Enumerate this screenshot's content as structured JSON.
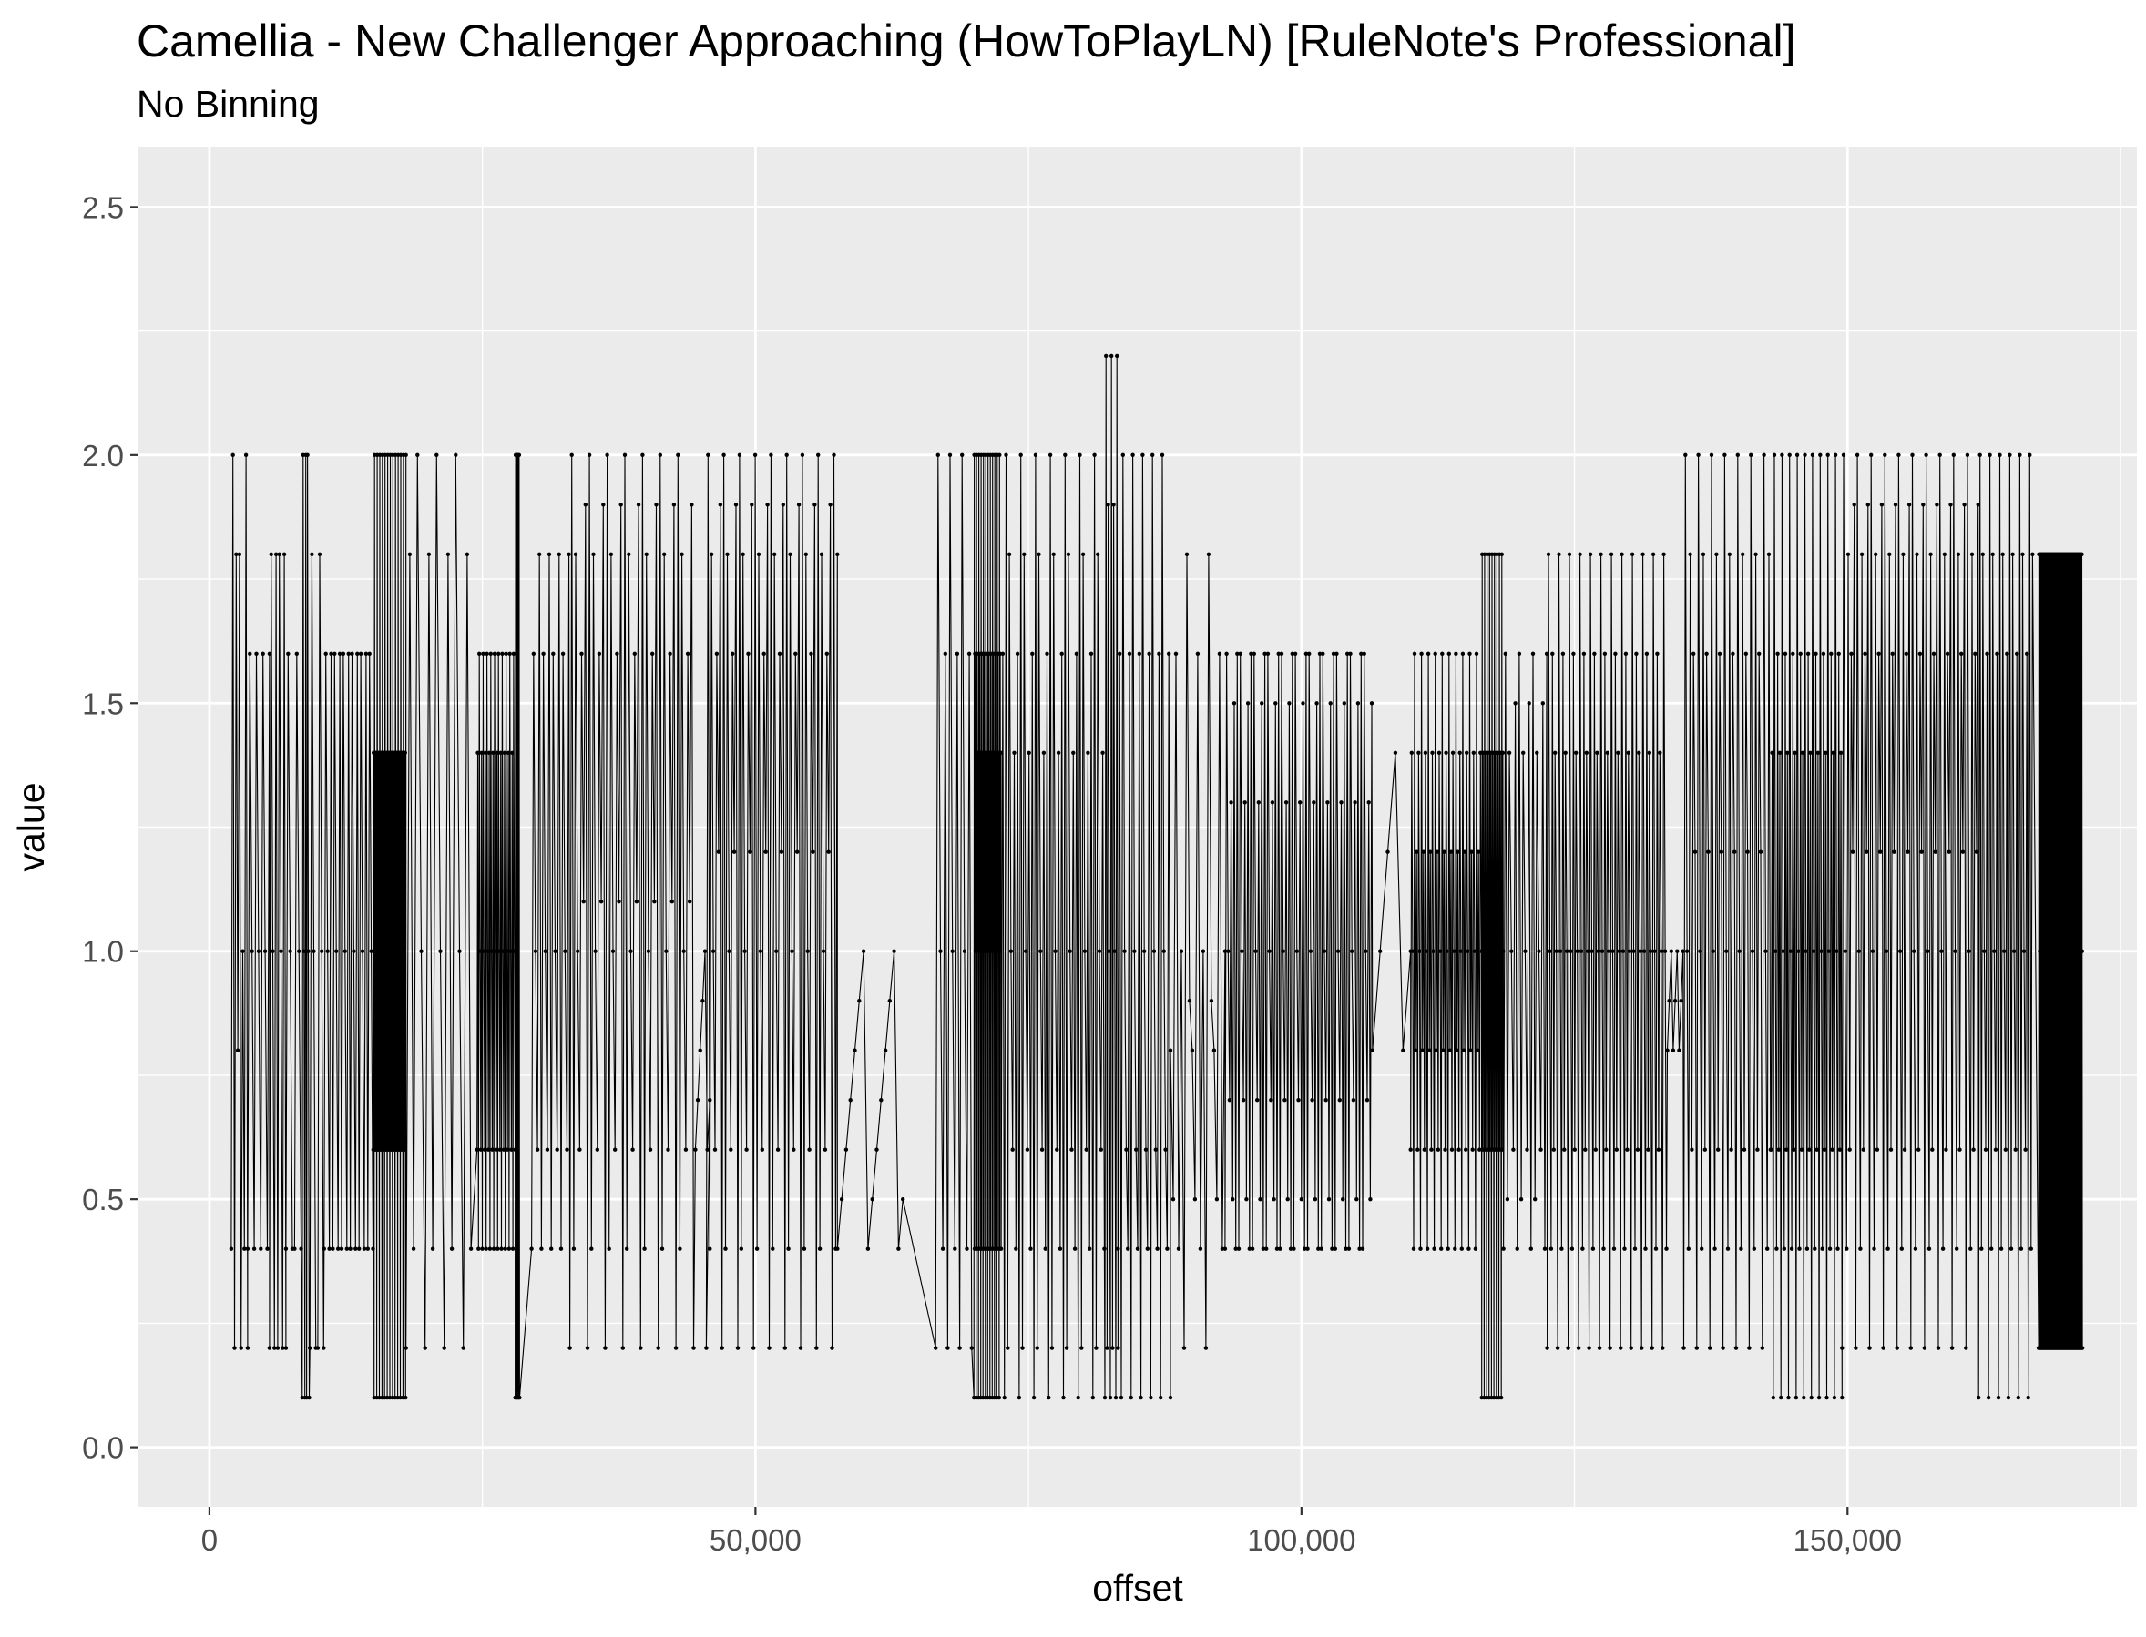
{
  "chart_data": {
    "type": "line",
    "title": "Camellia - New Challenger Approaching (HowToPlayLN) [RuleNote's Professional]",
    "subtitle": "No Binning",
    "xlabel": "offset",
    "ylabel": "value",
    "xlim": [
      -6500,
      176500
    ],
    "ylim": [
      -0.12,
      2.62
    ],
    "x_ticks": [
      {
        "value": 0,
        "label": "0"
      },
      {
        "value": 50000,
        "label": "50,000"
      },
      {
        "value": 100000,
        "label": "100,000"
      },
      {
        "value": 150000,
        "label": "150,000"
      }
    ],
    "y_ticks": [
      {
        "value": 0.0,
        "label": "0.0"
      },
      {
        "value": 0.5,
        "label": "0.5"
      },
      {
        "value": 1.0,
        "label": "1.0"
      },
      {
        "value": 1.5,
        "label": "1.5"
      },
      {
        "value": 2.0,
        "label": "2.0"
      },
      {
        "value": 2.5,
        "label": "2.5"
      }
    ],
    "grid": true,
    "colors": {
      "panel": "#EBEBEB",
      "grid_major": "#FFFFFF",
      "series": "#000000",
      "tick_text": "#4D4D4D",
      "title_text": "#000000"
    },
    "series": [
      {
        "segments": [
          {
            "start": 2000,
            "end": 3500,
            "step": 150,
            "levels": [
              0.4,
              2.0,
              0.2,
              1.8,
              0.8,
              1.8,
              0.2,
              1.0
            ]
          },
          {
            "start": 3500,
            "end": 5500,
            "step": 200,
            "levels": [
              0.4,
              1.6,
              1.0,
              0.4,
              1.6,
              1.0
            ]
          },
          {
            "start": 5500,
            "end": 7000,
            "step": 150,
            "levels": [
              0.2,
              1.8,
              1.0,
              0.2,
              1.8
            ]
          },
          {
            "start": 7000,
            "end": 8500,
            "step": 200,
            "levels": [
              0.4,
              1.6,
              1.0,
              0.4
            ]
          },
          {
            "start": 8500,
            "end": 9200,
            "step": 80,
            "levels": [
              0.1,
              2.0,
              1.0,
              0.1,
              2.0
            ]
          },
          {
            "start": 9200,
            "end": 10500,
            "step": 180,
            "levels": [
              0.2,
              1.8,
              1.0,
              0.2
            ]
          },
          {
            "start": 10500,
            "end": 15000,
            "step": 160,
            "levels": [
              0.4,
              1.6,
              1.0,
              0.4,
              1.6
            ]
          },
          {
            "start": 15000,
            "end": 18000,
            "step": 40,
            "levels": [
              0.6,
              1.4,
              0.1,
              2.0,
              0.6,
              1.4
            ]
          },
          {
            "start": 18000,
            "end": 24000,
            "step": 350,
            "levels": [
              0.2,
              1.8,
              0.4,
              2.0,
              1.0
            ]
          },
          {
            "start": 24500,
            "end": 28000,
            "step": 70,
            "levels": [
              0.6,
              1.4,
              0.4,
              1.6,
              1.0
            ]
          },
          {
            "start": 28000,
            "end": 28400,
            "step": 40,
            "levels": [
              0.1,
              2.0,
              0.1,
              2.0
            ]
          },
          {
            "start": 29500,
            "end": 33000,
            "step": 180,
            "levels": [
              0.4,
              1.6,
              1.0,
              0.6,
              1.8
            ]
          },
          {
            "start": 33000,
            "end": 44500,
            "step": 180,
            "levels": [
              0.2,
              2.0,
              0.4,
              1.8,
              1.0,
              0.6,
              1.6,
              1.1,
              1.9
            ]
          },
          {
            "start": 44500,
            "end": 46000,
            "step": 220,
            "levels": [
              0.6,
              0.7,
              0.8,
              0.9,
              1.0
            ]
          },
          {
            "start": 45500,
            "end": 57500,
            "step": 160,
            "levels": [
              0.2,
              2.0,
              0.4,
              1.8,
              1.0,
              0.6,
              1.6,
              1.2,
              1.9
            ]
          },
          {
            "start": 57500,
            "end": 63500,
            "step": 400,
            "levels": [
              0.4,
              0.5,
              0.6,
              0.7,
              0.8,
              0.9,
              1.0
            ]
          },
          {
            "start": 66500,
            "end": 70000,
            "step": 220,
            "levels": [
              0.2,
              2.0,
              1.0,
              0.4,
              1.6
            ]
          },
          {
            "start": 70000,
            "end": 72500,
            "step": 35,
            "levels": [
              0.1,
              2.0,
              0.4,
              1.6,
              1.0,
              1.4
            ]
          },
          {
            "start": 72500,
            "end": 82000,
            "step": 150,
            "levels": [
              0.4,
              1.6,
              0.1,
              2.0,
              0.2,
              1.8,
              1.0,
              0.6,
              1.4
            ]
          },
          {
            "start": 82000,
            "end": 83200,
            "step": 100,
            "levels": [
              0.1,
              2.2,
              0.2,
              1.9,
              1.0
            ]
          },
          {
            "start": 83200,
            "end": 88000,
            "step": 150,
            "levels": [
              0.4,
              1.6,
              0.1,
              2.0,
              1.0,
              0.6
            ]
          },
          {
            "start": 88000,
            "end": 93000,
            "step": 250,
            "levels": [
              0.8,
              0.5,
              1.6,
              0.4,
              1.0,
              0.2,
              1.8,
              0.9
            ]
          },
          {
            "start": 93000,
            "end": 106500,
            "step": 140,
            "levels": [
              0.4,
              1.6,
              1.0,
              0.7,
              1.3,
              0.5,
              1.5,
              0.4,
              1.6
            ]
          },
          {
            "start": 106500,
            "end": 110000,
            "step": 700,
            "levels": [
              0.8,
              1.0,
              1.2,
              1.4
            ]
          },
          {
            "start": 110000,
            "end": 116500,
            "step": 90,
            "levels": [
              0.6,
              1.4,
              1.0,
              0.4,
              1.6,
              0.8,
              1.2
            ]
          },
          {
            "start": 116500,
            "end": 118500,
            "step": 45,
            "levels": [
              0.1,
              1.8,
              0.6,
              1.4,
              1.0
            ]
          },
          {
            "start": 118500,
            "end": 122500,
            "step": 180,
            "levels": [
              0.4,
              1.6,
              0.5,
              1.4,
              1.0,
              0.6,
              1.5
            ]
          },
          {
            "start": 122500,
            "end": 133500,
            "step": 120,
            "levels": [
              0.2,
              1.8,
              1.0,
              0.4,
              1.6,
              0.6,
              1.4,
              1.0
            ]
          },
          {
            "start": 133500,
            "end": 135000,
            "step": 180,
            "levels": [
              0.8,
              0.9,
              1.0
            ]
          },
          {
            "start": 135000,
            "end": 143000,
            "step": 150,
            "levels": [
              0.2,
              2.0,
              1.0,
              0.4,
              1.8,
              0.6,
              1.6,
              1.2
            ]
          },
          {
            "start": 143000,
            "end": 149500,
            "step": 100,
            "levels": [
              0.6,
              1.4,
              0.1,
              2.0,
              1.0,
              0.4,
              1.6
            ]
          },
          {
            "start": 149500,
            "end": 162000,
            "step": 140,
            "levels": [
              0.2,
              2.0,
              1.0,
              0.4,
              1.8,
              0.6,
              1.6,
              1.2,
              1.9
            ]
          },
          {
            "start": 162000,
            "end": 167000,
            "step": 130,
            "levels": [
              0.1,
              2.0,
              0.4,
              1.8,
              1.0,
              0.6,
              1.6
            ]
          },
          {
            "start": 167500,
            "end": 171500,
            "step": 25,
            "levels": [
              0.2,
              1.8,
              0.2,
              1.8,
              1.0
            ]
          }
        ]
      }
    ]
  }
}
